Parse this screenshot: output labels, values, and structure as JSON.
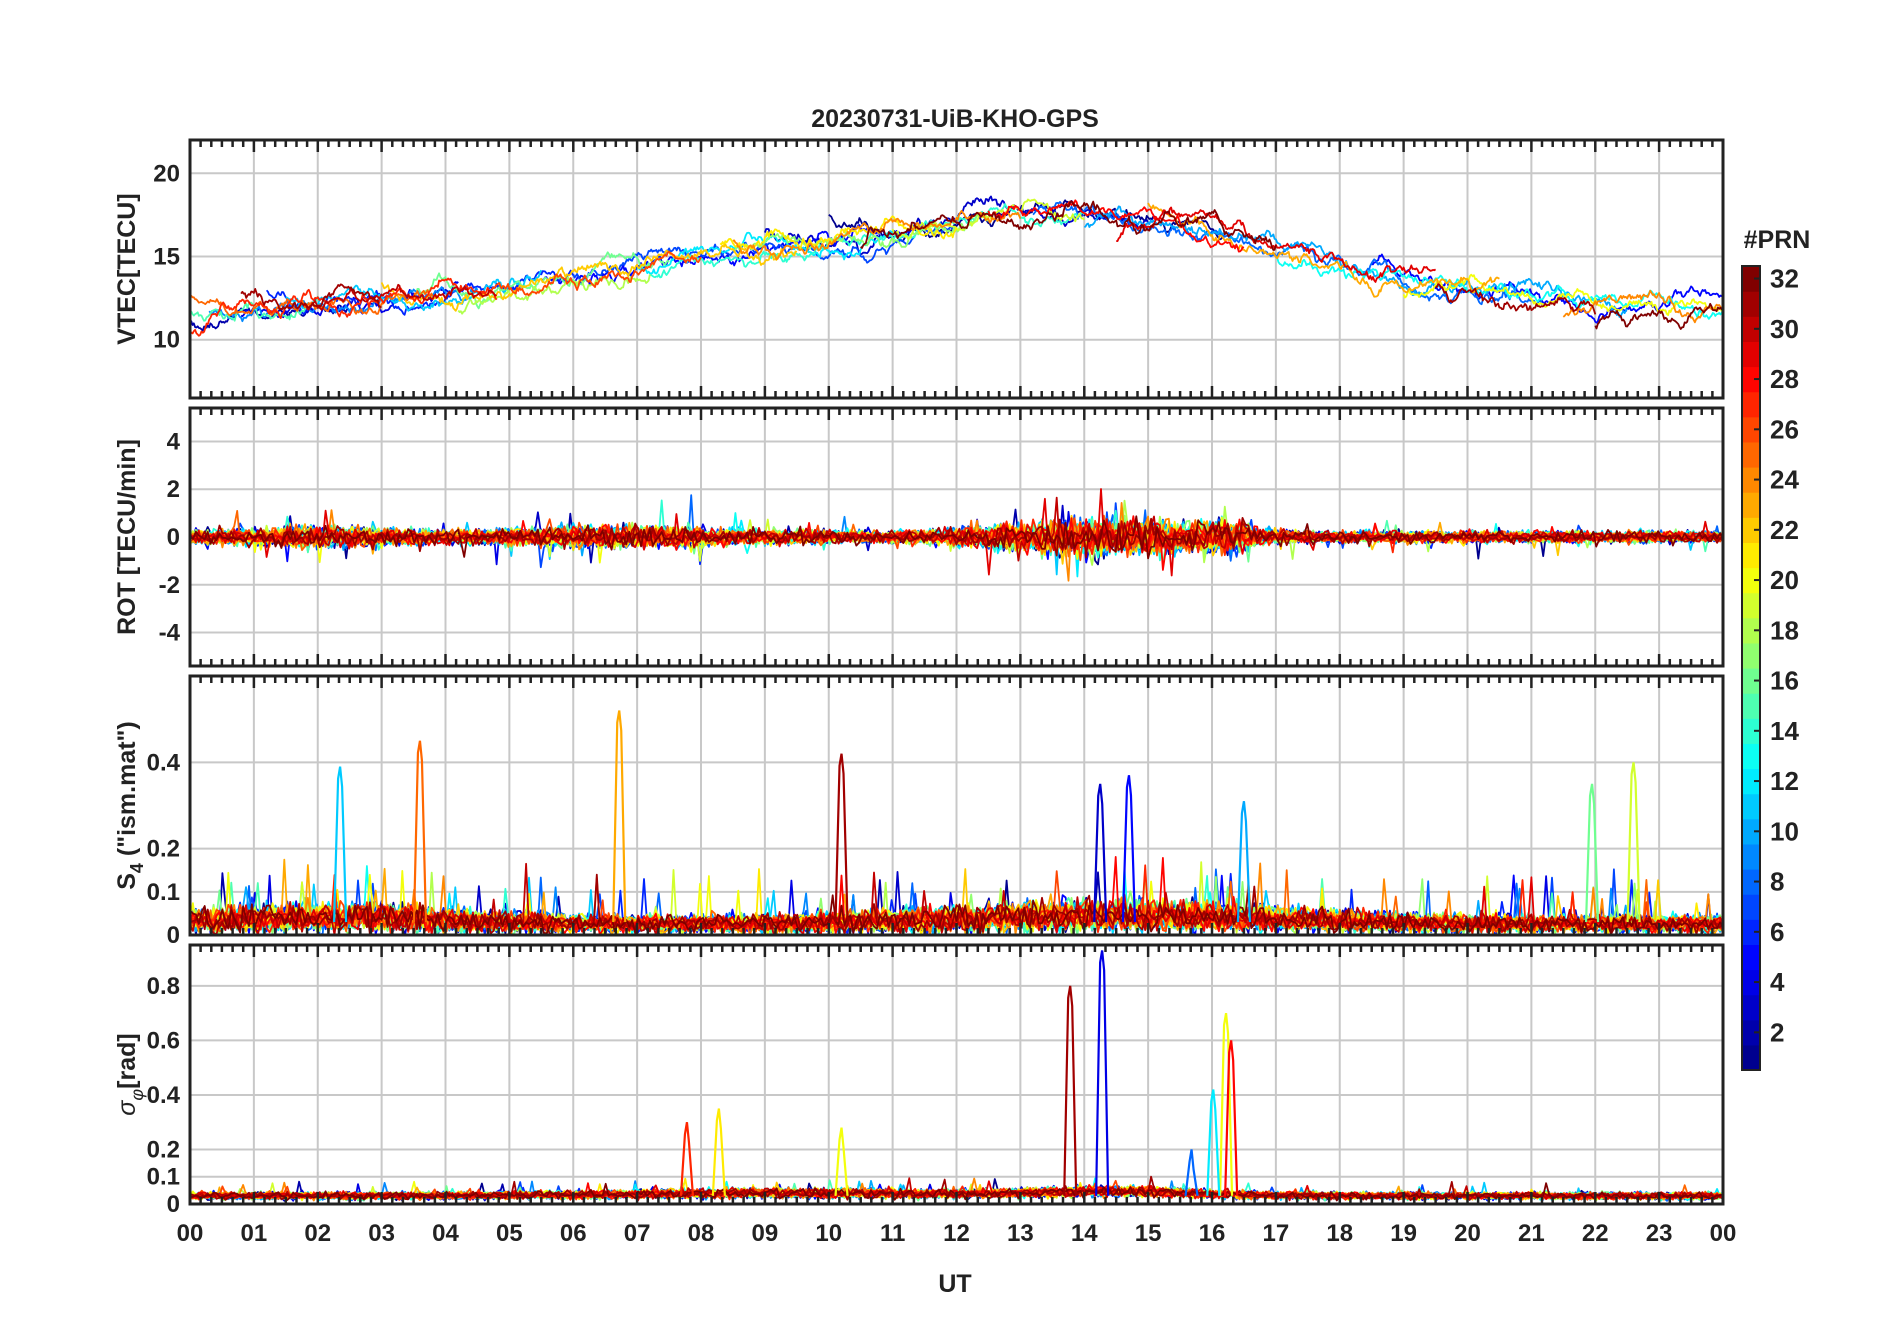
{
  "chart_data": {
    "type": "line",
    "title": "20230731-UiB-KHO-GPS",
    "xlabel": "UT",
    "x_tick_labels": [
      "00",
      "01",
      "02",
      "03",
      "04",
      "05",
      "06",
      "07",
      "08",
      "09",
      "10",
      "11",
      "12",
      "13",
      "14",
      "15",
      "16",
      "17",
      "18",
      "19",
      "20",
      "21",
      "22",
      "23",
      "00"
    ],
    "xlim": [
      0,
      24
    ],
    "panels": [
      {
        "id": "vtec",
        "ylabel": "VTEC[TECU]",
        "ylim": [
          6.5,
          22
        ],
        "yticks": [
          10,
          15,
          20
        ],
        "yticklabels": [
          "10",
          "15",
          "20"
        ],
        "description": "Vertical total electron content per GPS PRN, mostly 10-20 TECU"
      },
      {
        "id": "rot",
        "ylabel": "ROT [TECU/min]",
        "ylim": [
          -5.4,
          5.4
        ],
        "yticks": [
          -4,
          -2,
          0,
          2,
          4
        ],
        "yticklabels": [
          "-4",
          "-2",
          "0",
          "2",
          "4"
        ],
        "description": "Rate of TEC, fluctuating around 0 with spikes near 13-16.5 UT"
      },
      {
        "id": "s4",
        "ylabel": "S_4 (\"ism.mat\")",
        "ylabel_main": "S",
        "ylabel_sub": "4",
        "ylabel_rest": " (\"ism.mat\")",
        "ylim": [
          0,
          0.6
        ],
        "yticks": [
          0,
          0.1,
          0.2,
          0.4
        ],
        "yticklabels": [
          "0",
          "0.1",
          "0.2",
          "0.4"
        ],
        "peaks": [
          {
            "prn": 23,
            "x": 6.72,
            "y": 0.52
          },
          {
            "prn": 25,
            "x": 3.6,
            "y": 0.45
          },
          {
            "prn": 31,
            "x": 10.2,
            "y": 0.42
          },
          {
            "prn": 19,
            "x": 22.6,
            "y": 0.4
          },
          {
            "prn": 11,
            "x": 2.35,
            "y": 0.39
          },
          {
            "prn": 5,
            "x": 14.7,
            "y": 0.37
          },
          {
            "prn": 3,
            "x": 14.25,
            "y": 0.35
          },
          {
            "prn": 16,
            "x": 21.95,
            "y": 0.35
          },
          {
            "prn": 10,
            "x": 16.5,
            "y": 0.31
          }
        ]
      },
      {
        "id": "sigma_phi",
        "ylabel": "σ_φ[rad]",
        "ylabel_main": "σ",
        "ylabel_sub": "φ",
        "ylabel_rest": "[rad]",
        "ylim": [
          0,
          0.95
        ],
        "yticks": [
          0,
          0.1,
          0.2,
          0.4,
          0.6,
          0.8
        ],
        "yticklabels": [
          "0",
          "0.1",
          "0.2",
          "0.4",
          "0.6",
          "0.8"
        ],
        "peaks": [
          {
            "prn": 4,
            "x": 14.28,
            "y": 0.93
          },
          {
            "prn": 31,
            "x": 13.78,
            "y": 0.8
          },
          {
            "prn": 20,
            "x": 16.22,
            "y": 0.7
          },
          {
            "prn": 28,
            "x": 16.3,
            "y": 0.6
          },
          {
            "prn": 12,
            "x": 16.02,
            "y": 0.42
          },
          {
            "prn": 21,
            "x": 8.28,
            "y": 0.35
          },
          {
            "prn": 27,
            "x": 7.78,
            "y": 0.3
          },
          {
            "prn": 20,
            "x": 10.2,
            "y": 0.28
          },
          {
            "prn": 8,
            "x": 15.68,
            "y": 0.2
          }
        ]
      }
    ],
    "colorbar": {
      "label": "#PRN",
      "range": [
        1,
        32
      ],
      "tick_labels": [
        "2",
        "4",
        "6",
        "8",
        "10",
        "12",
        "14",
        "16",
        "18",
        "20",
        "22",
        "24",
        "26",
        "28",
        "30",
        "32"
      ],
      "colormap": "jet",
      "colors": [
        "#00008f",
        "#0000ff",
        "#0080ff",
        "#00ffff",
        "#80ff80",
        "#ffff00",
        "#ff8000",
        "#ff0000",
        "#800000"
      ]
    },
    "series": [
      {
        "prn": 1,
        "name": "PRN 1",
        "vtec_segments": [
          [
            10.0,
            16.2
          ]
        ]
      },
      {
        "prn": 2,
        "name": "PRN 2",
        "vtec_segments": [
          [
            0.0,
            2.5
          ]
        ]
      },
      {
        "prn": 3,
        "name": "PRN 3",
        "vtec_segments": [
          [
            9.0,
            15.0
          ]
        ]
      },
      {
        "prn": 4,
        "name": "PRN 4",
        "vtec_segments": [
          [
            0.8,
            4.2
          ]
        ]
      },
      {
        "prn": 5,
        "name": "PRN 5",
        "vtec_segments": [
          [
            5.5,
            11.5
          ],
          [
            18.5,
            24.0
          ]
        ]
      },
      {
        "prn": 6,
        "name": "PRN 6",
        "vtec_segments": [
          [
            1.2,
            6.0
          ]
        ]
      },
      {
        "prn": 7,
        "name": "PRN 7",
        "vtec_segments": [
          [
            6.0,
            12.0
          ]
        ]
      },
      {
        "prn": 8,
        "name": "PRN 8",
        "vtec_segments": [
          [
            13.2,
            21.2
          ]
        ]
      },
      {
        "prn": 9,
        "name": "PRN 9",
        "vtec_segments": [
          [
            0.3,
            4.5
          ]
        ]
      },
      {
        "prn": 10,
        "name": "PRN 10",
        "vtec_segments": [
          [
            14.0,
            22.5
          ]
        ]
      },
      {
        "prn": 11,
        "name": "PRN 11",
        "vtec_segments": [
          [
            1.5,
            5.5
          ]
        ]
      },
      {
        "prn": 12,
        "name": "PRN 12",
        "vtec_segments": [
          [
            7.0,
            11.0
          ]
        ]
      },
      {
        "prn": 13,
        "name": "PRN 13",
        "vtec_segments": [
          [
            17.0,
            24.0
          ]
        ]
      },
      {
        "prn": 14,
        "name": "PRN 14",
        "vtec_segments": [
          [
            7.2,
            14.0
          ]
        ]
      },
      {
        "prn": 15,
        "name": "PRN 15",
        "vtec_segments": [
          [
            0.0,
            2.0
          ]
        ]
      },
      {
        "prn": 16,
        "name": "PRN 16",
        "vtec_segments": [
          [
            3.5,
            7.5
          ]
        ]
      },
      {
        "prn": 17,
        "name": "PRN 17",
        "vtec_segments": [
          [
            8.5,
            12.5
          ]
        ]
      },
      {
        "prn": 18,
        "name": "PRN 18",
        "vtec_segments": [
          [
            4.2,
            7.2
          ]
        ]
      },
      {
        "prn": 19,
        "name": "PRN 19",
        "vtec_segments": [
          [
            11.0,
            14.0
          ]
        ]
      },
      {
        "prn": 20,
        "name": "PRN 20",
        "vtec_segments": [
          [
            19.0,
            24.0
          ]
        ]
      },
      {
        "prn": 21,
        "name": "PRN 21",
        "vtec_segments": [
          [
            8.3,
            12.0
          ]
        ]
      },
      {
        "prn": 22,
        "name": "PRN 22",
        "vtec_segments": [
          [
            3.0,
            9.5
          ]
        ]
      },
      {
        "prn": 23,
        "name": "PRN 23",
        "vtec_segments": [
          [
            15.0,
            20.5
          ]
        ]
      },
      {
        "prn": 24,
        "name": "PRN 24",
        "vtec_segments": [
          [
            8.5,
            13.0
          ],
          [
            21.5,
            24.0
          ]
        ]
      },
      {
        "prn": 25,
        "name": "PRN 25",
        "vtec_segments": [
          [
            0.0,
            3.8
          ]
        ]
      },
      {
        "prn": 26,
        "name": "PRN 26",
        "vtec_segments": [
          [
            4.5,
            8.0
          ]
        ]
      },
      {
        "prn": 27,
        "name": "PRN 27",
        "vtec_segments": [
          [
            0.0,
            4.8
          ]
        ]
      },
      {
        "prn": 28,
        "name": "PRN 28",
        "vtec_segments": [
          [
            12.5,
            16.5
          ]
        ]
      },
      {
        "prn": 29,
        "name": "PRN 29",
        "vtec_segments": [
          [
            14.5,
            19.5
          ]
        ]
      },
      {
        "prn": 30,
        "name": "PRN 30",
        "vtec_segments": [
          [
            1.8,
            4.8
          ]
        ]
      },
      {
        "prn": 31,
        "name": "PRN 31",
        "vtec_segments": [
          [
            0.8,
            3.0
          ],
          [
            19.5,
            22.0
          ]
        ]
      },
      {
        "prn": 32,
        "name": "PRN 32",
        "vtec_segments": [
          [
            10.5,
            17.0
          ],
          [
            22.0,
            24.0
          ]
        ]
      }
    ]
  }
}
